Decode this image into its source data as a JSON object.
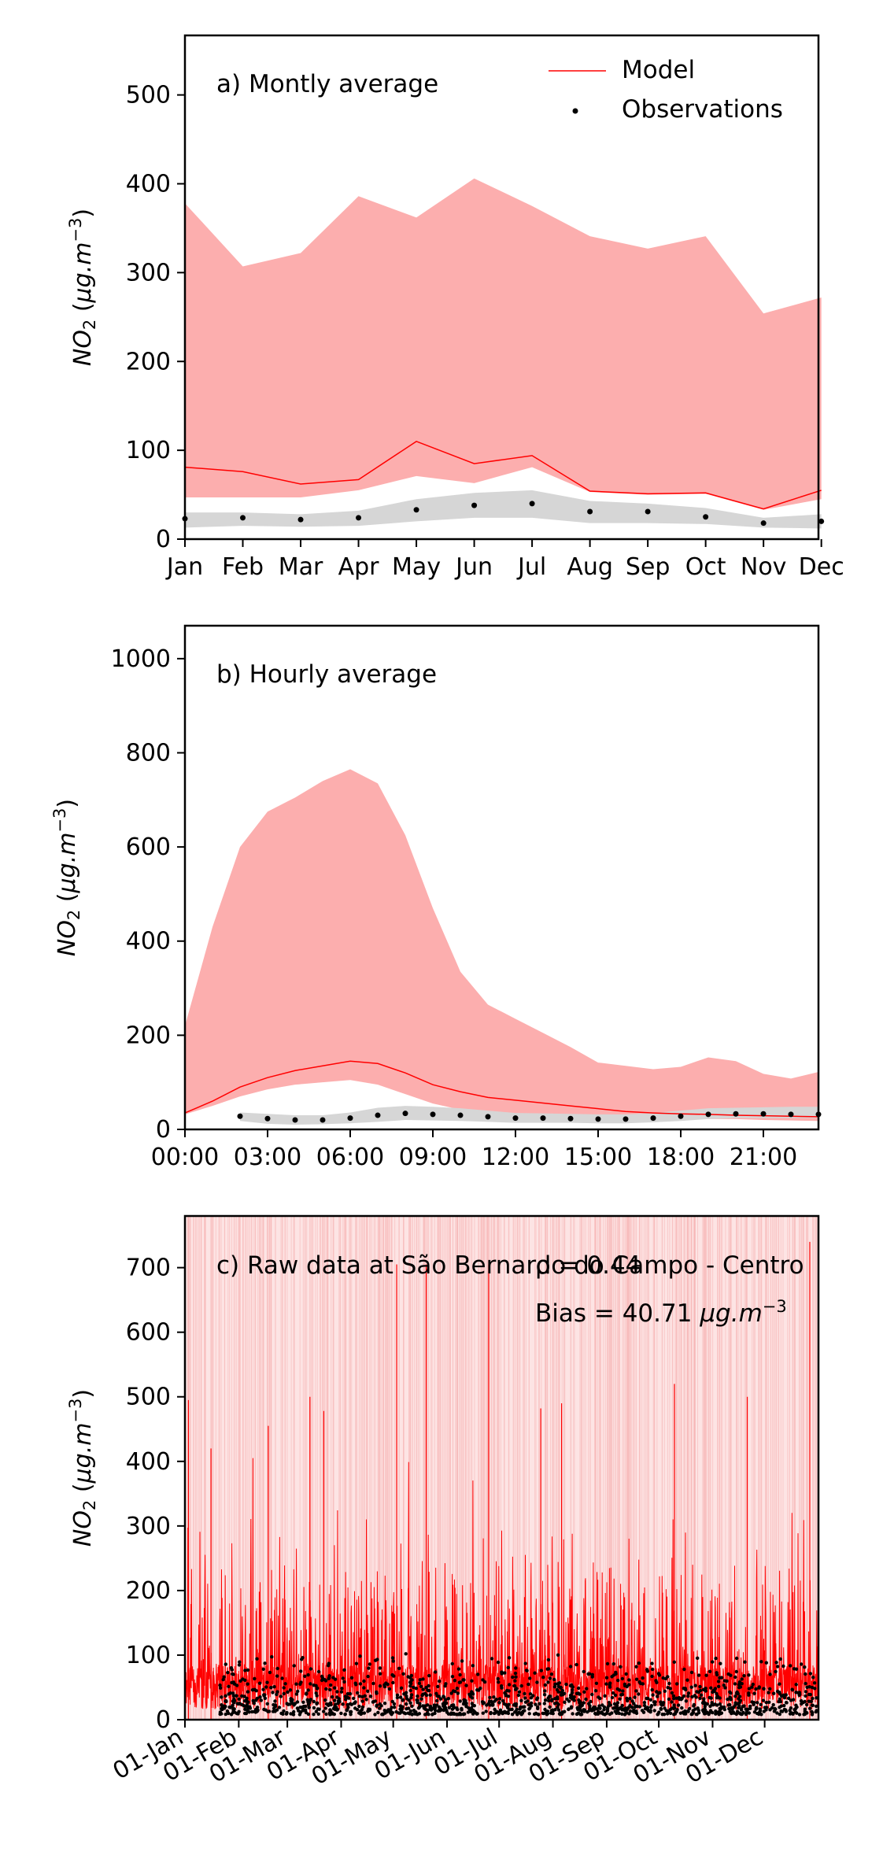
{
  "colors": {
    "model": "#ff0000",
    "model_band": "#fcaeae",
    "obs": "#000000",
    "obs_band": "#d6d6d6"
  },
  "legend": {
    "model": "Model",
    "observations": "Observations"
  },
  "chart_data": [
    {
      "type": "line",
      "panel": "a",
      "title": "a) Montly average",
      "ylabel": "NO2 (μg.m−3)",
      "xlabel": "",
      "categories": [
        "Jan",
        "Feb",
        "Mar",
        "Apr",
        "May",
        "Jun",
        "Jul",
        "Aug",
        "Sep",
        "Oct",
        "Nov",
        "Dec"
      ],
      "x": [
        0,
        1,
        2,
        3,
        4,
        5,
        6,
        7,
        8,
        9,
        10,
        11
      ],
      "xlim": [
        0,
        10.95
      ],
      "ylim": [
        0,
        567
      ],
      "yticks": [
        0,
        100,
        200,
        300,
        400,
        500
      ],
      "series": [
        {
          "name": "Model",
          "values": [
            81,
            76,
            62,
            67,
            110,
            85,
            94,
            54,
            51,
            52,
            34,
            55
          ],
          "band_low": [
            47,
            47,
            47,
            55,
            71,
            63,
            81,
            53,
            50,
            51,
            33,
            45
          ],
          "band_high": [
            378,
            307,
            322,
            386,
            362,
            406,
            375,
            341,
            327,
            341,
            254,
            272
          ]
        },
        {
          "name": "Observations",
          "values": [
            23,
            24,
            22,
            24,
            33,
            38,
            40,
            31,
            31,
            25,
            18,
            20
          ],
          "band_low": [
            13,
            15,
            14,
            15,
            20,
            24,
            24,
            18,
            18,
            17,
            13,
            12
          ],
          "band_high": [
            30,
            30,
            28,
            32,
            45,
            52,
            55,
            43,
            40,
            35,
            24,
            28
          ]
        }
      ],
      "grid": false,
      "legend_position": "top-right"
    },
    {
      "type": "line",
      "panel": "b",
      "title": "b) Hourly average",
      "ylabel": "NO2 (μg.m−3)",
      "xlabel": "",
      "x": [
        0,
        1,
        2,
        3,
        4,
        5,
        6,
        7,
        8,
        9,
        10,
        11,
        12,
        13,
        14,
        15,
        16,
        17,
        18,
        19,
        20,
        21,
        22,
        23
      ],
      "xticklabels": [
        "00:00",
        "03:00",
        "06:00",
        "09:00",
        "12:00",
        "15:00",
        "18:00",
        "21:00"
      ],
      "xtick_values": [
        0,
        3,
        6,
        9,
        12,
        15,
        18,
        21
      ],
      "xlim": [
        0,
        23
      ],
      "ylim": [
        0,
        1070
      ],
      "yticks": [
        0,
        200,
        400,
        600,
        800,
        1000
      ],
      "series": [
        {
          "name": "Model",
          "values": [
            35,
            60,
            90,
            110,
            125,
            135,
            145,
            140,
            120,
            95,
            80,
            68,
            62,
            56,
            50,
            44,
            38,
            35,
            33,
            32,
            30,
            29,
            28,
            27
          ],
          "band_low": [
            32,
            50,
            70,
            85,
            95,
            100,
            105,
            95,
            75,
            55,
            42,
            35,
            30,
            27,
            24,
            22,
            20,
            20,
            21,
            22,
            22,
            20,
            19,
            18
          ],
          "band_high": [
            220,
            430,
            600,
            675,
            705,
            740,
            765,
            735,
            625,
            470,
            335,
            265,
            235,
            205,
            175,
            142,
            135,
            128,
            133,
            153,
            145,
            118,
            108,
            122
          ]
        },
        {
          "name": "Observations",
          "values": [
            null,
            null,
            28,
            23,
            20,
            20,
            24,
            30,
            34,
            32,
            30,
            27,
            24,
            24,
            23,
            22,
            22,
            24,
            28,
            32,
            33,
            33,
            32,
            32
          ],
          "band_low": [
            null,
            null,
            18,
            12,
            10,
            11,
            13,
            16,
            20,
            19,
            18,
            16,
            14,
            14,
            14,
            13,
            13,
            15,
            18,
            22,
            24,
            24,
            24,
            24
          ],
          "band_high": [
            null,
            null,
            36,
            33,
            30,
            30,
            36,
            46,
            50,
            48,
            45,
            40,
            35,
            34,
            33,
            32,
            32,
            35,
            40,
            45,
            46,
            47,
            48,
            48
          ]
        }
      ],
      "grid": false
    },
    {
      "type": "line",
      "panel": "c",
      "title": "c) Raw data at São Bernardo do Campo - Centro",
      "annotations": [
        "ρ = 0.44",
        "Bias = 40.71 μg.m−3"
      ],
      "ylabel": "NO2 (μg.m−3)",
      "xlabel": "",
      "xticklabels": [
        "01-Jan",
        "01-Feb",
        "01-Mar",
        "01-Apr",
        "01-May",
        "01-Jun",
        "01-Jul",
        "01-Aug",
        "01-Sep",
        "01-Oct",
        "01-Nov",
        "01-Dec"
      ],
      "xtick_values": [
        0,
        31,
        59,
        90,
        120,
        151,
        181,
        212,
        243,
        273,
        304,
        334
      ],
      "xlim": [
        0,
        365
      ],
      "ylim": [
        0,
        780
      ],
      "yticks": [
        0,
        100,
        200,
        300,
        400,
        500,
        600,
        700
      ],
      "series": [
        {
          "name": "Model",
          "description_values": "hourly values 0-740 across the year",
          "peaks": [
            [
              2,
              495
            ],
            [
              15,
              420
            ],
            [
              48,
              455
            ],
            [
              72,
              500
            ],
            [
              80,
              478
            ],
            [
              122,
              705
            ],
            [
              139,
              705
            ],
            [
              175,
              705
            ],
            [
              205,
              482
            ],
            [
              217,
              490
            ],
            [
              282,
              520
            ],
            [
              324,
              500
            ],
            [
              360,
              740
            ]
          ]
        },
        {
          "name": "Observations",
          "range": [
            0,
            110
          ]
        }
      ],
      "grid": false
    }
  ]
}
